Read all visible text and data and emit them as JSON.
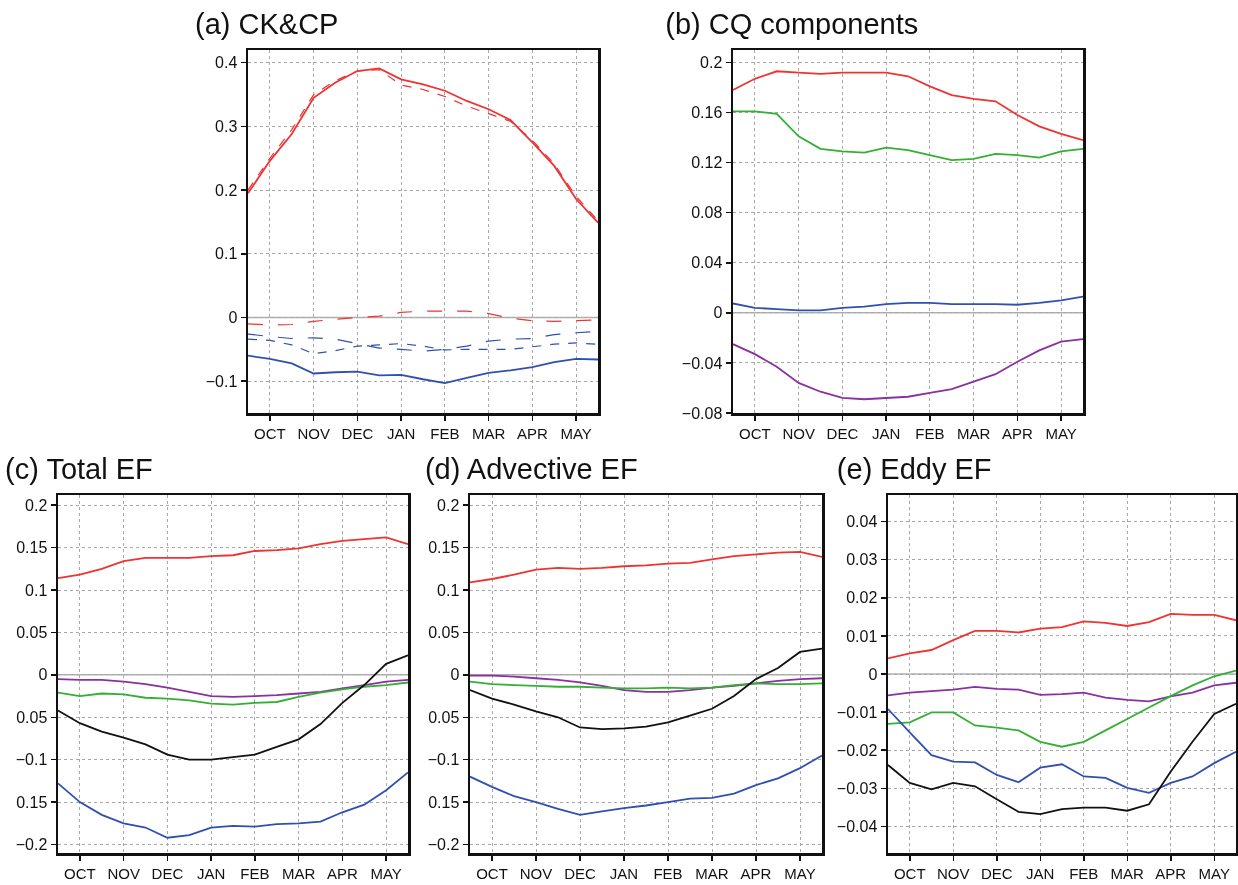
{
  "chart_data": [
    {
      "type": "line",
      "title": "(a) CK&CP",
      "categories": [
        null,
        "OCT",
        null,
        "NOV",
        null,
        "DEC",
        null,
        "JAN",
        null,
        "FEB",
        null,
        "MAR",
        null,
        "APR",
        null,
        "MAY",
        null
      ],
      "ylim": [
        -0.15,
        0.42
      ],
      "yticks": [
        {
          "value": -0.1,
          "label": "−0.1"
        },
        0,
        0.1,
        0.2,
        0.3,
        0.4
      ],
      "grid": true,
      "ref_lines": [
        {
          "axis": "y",
          "value": 0,
          "color": "#b0b0b0"
        }
      ],
      "series": [
        {
          "color": "#ee3333",
          "line_style": "solid",
          "values": [
            0.195,
            0.246,
            0.288,
            0.345,
            0.369,
            0.387,
            0.391,
            0.374,
            0.366,
            0.356,
            0.34,
            0.327,
            0.31,
            0.275,
            0.238,
            0.186,
            0.149
          ]
        },
        {
          "color": "#ee3333",
          "line_style": "dotted",
          "values": [
            0.2,
            0.25,
            0.295,
            0.35,
            0.372,
            0.387,
            0.389,
            0.365,
            0.358,
            0.347,
            0.332,
            0.32,
            0.308,
            0.278,
            0.241,
            0.19,
            0.152
          ]
        },
        {
          "color": "#ee3333",
          "line_style": "dashed",
          "values": [
            -0.01,
            -0.012,
            -0.011,
            -0.006,
            -0.003,
            0.0,
            0.002,
            0.008,
            0.01,
            0.01,
            0.01,
            0.006,
            -0.001,
            -0.005,
            -0.006,
            -0.005,
            -0.004
          ]
        },
        {
          "color": "#3050b0",
          "line_style": "dashed",
          "values": [
            -0.026,
            -0.03,
            -0.033,
            -0.032,
            -0.034,
            -0.041,
            -0.048,
            -0.05,
            -0.053,
            -0.05,
            -0.045,
            -0.037,
            -0.034,
            -0.033,
            -0.027,
            -0.024,
            -0.022
          ]
        },
        {
          "color": "#3050b0",
          "line_style": "dotted",
          "values": [
            -0.034,
            -0.036,
            -0.043,
            -0.057,
            -0.052,
            -0.045,
            -0.043,
            -0.041,
            -0.045,
            -0.051,
            -0.05,
            -0.05,
            -0.05,
            -0.046,
            -0.042,
            -0.04,
            -0.042
          ]
        },
        {
          "color": "#3050b0",
          "line_style": "solid",
          "values": [
            -0.06,
            -0.065,
            -0.072,
            -0.088,
            -0.086,
            -0.085,
            -0.091,
            -0.09,
            -0.097,
            -0.103,
            -0.095,
            -0.087,
            -0.083,
            -0.078,
            -0.07,
            -0.065,
            -0.066
          ]
        }
      ]
    },
    {
      "type": "line",
      "title": "(b) CQ components",
      "categories": [
        null,
        "OCT",
        null,
        "NOV",
        null,
        "DEC",
        null,
        "JAN",
        null,
        "FEB",
        null,
        "MAR",
        null,
        "APR",
        null,
        "MAY",
        null
      ],
      "ylim": [
        -0.08,
        0.21
      ],
      "yticks": [
        {
          "value": -0.08,
          "label": "−0.08"
        },
        {
          "value": -0.04,
          "label": "−0.04"
        },
        0,
        0.04,
        0.08,
        0.12,
        0.16,
        0.2
      ],
      "grid": true,
      "ref_lines": [
        {
          "axis": "y",
          "value": 0,
          "color": "#b0b0b0"
        }
      ],
      "series": [
        {
          "color": "#ee3333",
          "line_style": "solid",
          "values": [
            0.178,
            0.187,
            0.193,
            0.192,
            0.191,
            0.192,
            0.192,
            0.192,
            0.189,
            0.181,
            0.174,
            0.171,
            0.169,
            0.158,
            0.149,
            0.143,
            0.138
          ]
        },
        {
          "color": "#33b033",
          "line_style": "solid",
          "values": [
            0.161,
            0.161,
            0.159,
            0.141,
            0.131,
            0.129,
            0.128,
            0.132,
            0.13,
            0.126,
            0.122,
            0.123,
            0.127,
            0.126,
            0.124,
            0.129,
            0.131
          ]
        },
        {
          "color": "#3050b0",
          "line_style": "solid",
          "values": [
            0.0075,
            0.004,
            0.003,
            0.002,
            0.002,
            0.004,
            0.005,
            0.007,
            0.008,
            0.008,
            0.007,
            0.007,
            0.007,
            0.0065,
            0.008,
            0.01,
            0.013
          ]
        },
        {
          "color": "#8a30a0",
          "line_style": "solid",
          "values": [
            -0.025,
            -0.033,
            -0.043,
            -0.056,
            -0.063,
            -0.068,
            -0.069,
            -0.068,
            -0.067,
            -0.064,
            -0.061,
            -0.055,
            -0.049,
            -0.039,
            -0.03,
            -0.023,
            -0.021
          ]
        }
      ]
    },
    {
      "type": "line",
      "title": "(c) Total EF",
      "categories": [
        null,
        "OCT",
        null,
        "NOV",
        null,
        "DEC",
        null,
        "JAN",
        null,
        "FEB",
        null,
        "MAR",
        null,
        "APR",
        null,
        "MAY",
        null
      ],
      "ylim": [
        -0.21,
        0.212
      ],
      "yticks": [
        {
          "value": -0.2,
          "label": "−0.2"
        },
        {
          "value": -0.15,
          "label": "0.15"
        },
        {
          "value": -0.1,
          "label": "−0.1"
        },
        {
          "value": -0.05,
          "label": "0.05"
        },
        0,
        0.05,
        0.1,
        0.15,
        0.2
      ],
      "grid": true,
      "ref_lines": [
        {
          "axis": "y",
          "value": 0,
          "color": "#b0b0b0"
        }
      ],
      "series": [
        {
          "color": "#ee3333",
          "line_style": "solid",
          "values": [
            0.114,
            0.118,
            0.125,
            0.134,
            0.138,
            0.138,
            0.138,
            0.14,
            0.141,
            0.146,
            0.147,
            0.149,
            0.154,
            0.158,
            0.16,
            0.162,
            0.154
          ]
        },
        {
          "color": "#8a30a0",
          "line_style": "solid",
          "values": [
            -0.005,
            -0.006,
            -0.006,
            -0.008,
            -0.011,
            -0.015,
            -0.02,
            -0.025,
            -0.026,
            -0.025,
            -0.024,
            -0.022,
            -0.02,
            -0.016,
            -0.012,
            -0.008,
            -0.006
          ]
        },
        {
          "color": "#33b033",
          "line_style": "solid",
          "values": [
            -0.021,
            -0.025,
            -0.022,
            -0.023,
            -0.027,
            -0.028,
            -0.03,
            -0.034,
            -0.035,
            -0.033,
            -0.032,
            -0.026,
            -0.021,
            -0.017,
            -0.014,
            -0.012,
            -0.009
          ]
        },
        {
          "color": "#111111",
          "line_style": "solid",
          "values": [
            -0.042,
            -0.057,
            -0.067,
            -0.074,
            -0.082,
            -0.094,
            -0.1,
            -0.1,
            -0.097,
            -0.094,
            -0.085,
            -0.076,
            -0.058,
            -0.033,
            -0.012,
            0.013,
            0.023
          ]
        },
        {
          "color": "#3050b0",
          "line_style": "solid",
          "values": [
            -0.128,
            -0.15,
            -0.165,
            -0.175,
            -0.18,
            -0.192,
            -0.189,
            -0.18,
            -0.178,
            -0.179,
            -0.176,
            -0.175,
            -0.173,
            -0.162,
            -0.153,
            -0.136,
            -0.115
          ]
        }
      ]
    },
    {
      "type": "line",
      "title": "(d) Advective EF",
      "categories": [
        null,
        "OCT",
        null,
        "NOV",
        null,
        "DEC",
        null,
        "JAN",
        null,
        "FEB",
        null,
        "MAR",
        null,
        "APR",
        null,
        "MAY",
        null
      ],
      "ylim": [
        -0.21,
        0.212
      ],
      "yticks": [
        {
          "value": -0.2,
          "label": "−0.2"
        },
        {
          "value": -0.15,
          "label": "0.15"
        },
        {
          "value": -0.1,
          "label": "−0.1"
        },
        {
          "value": -0.05,
          "label": "0.05"
        },
        0,
        0.05,
        0.1,
        0.15,
        0.2
      ],
      "grid": true,
      "ref_lines": [
        {
          "axis": "y",
          "value": 0,
          "color": "#b0b0b0"
        }
      ],
      "series": [
        {
          "color": "#ee3333",
          "line_style": "solid",
          "values": [
            0.109,
            0.113,
            0.118,
            0.124,
            0.126,
            0.125,
            0.126,
            0.128,
            0.129,
            0.131,
            0.132,
            0.136,
            0.14,
            0.142,
            0.144,
            0.145,
            0.139
          ]
        },
        {
          "color": "#8a30a0",
          "line_style": "solid",
          "values": [
            -0.001,
            -0.001,
            -0.002,
            -0.004,
            -0.006,
            -0.009,
            -0.013,
            -0.018,
            -0.02,
            -0.02,
            -0.018,
            -0.015,
            -0.013,
            -0.01,
            -0.007,
            -0.005,
            -0.004
          ]
        },
        {
          "color": "#33b033",
          "line_style": "solid",
          "values": [
            -0.008,
            -0.011,
            -0.012,
            -0.013,
            -0.014,
            -0.014,
            -0.015,
            -0.016,
            -0.016,
            -0.015,
            -0.016,
            -0.015,
            -0.012,
            -0.01,
            -0.011,
            -0.011,
            -0.01
          ]
        },
        {
          "color": "#111111",
          "line_style": "solid",
          "values": [
            -0.018,
            -0.028,
            -0.035,
            -0.043,
            -0.05,
            -0.062,
            -0.064,
            -0.063,
            -0.061,
            -0.056,
            -0.048,
            -0.04,
            -0.025,
            -0.005,
            0.008,
            0.027,
            0.031
          ]
        },
        {
          "color": "#3050b0",
          "line_style": "solid",
          "values": [
            -0.12,
            -0.132,
            -0.143,
            -0.15,
            -0.158,
            -0.165,
            -0.161,
            -0.157,
            -0.154,
            -0.15,
            -0.146,
            -0.145,
            -0.14,
            -0.13,
            -0.122,
            -0.11,
            -0.095
          ]
        }
      ]
    },
    {
      "type": "line",
      "title": "(e) Eddy EF",
      "categories": [
        null,
        "OCT",
        null,
        "NOV",
        null,
        "DEC",
        null,
        "JAN",
        null,
        "FEB",
        null,
        "MAR",
        null,
        "APR",
        null,
        "MAY",
        null
      ],
      "ylim": [
        -0.047,
        0.047
      ],
      "yticks": [
        {
          "value": -0.04,
          "label": "−0.04"
        },
        {
          "value": -0.03,
          "label": "−0.03"
        },
        {
          "value": -0.02,
          "label": "−0.02"
        },
        {
          "value": -0.01,
          "label": "−0.01"
        },
        0,
        0.01,
        0.02,
        0.03,
        0.04
      ],
      "grid": true,
      "ref_lines": [
        {
          "axis": "y",
          "value": 0,
          "color": "#b0b0b0"
        }
      ],
      "series": [
        {
          "color": "#ee3333",
          "line_style": "solid",
          "values": [
            0.0041,
            0.0054,
            0.0063,
            0.0089,
            0.0113,
            0.0113,
            0.0109,
            0.0119,
            0.0123,
            0.0138,
            0.0134,
            0.0126,
            0.0136,
            0.0158,
            0.0155,
            0.0155,
            0.0141
          ]
        },
        {
          "color": "#8a30a0",
          "line_style": "solid",
          "values": [
            -0.0056,
            -0.0049,
            -0.0045,
            -0.0041,
            -0.0034,
            -0.0039,
            -0.0041,
            -0.0055,
            -0.0053,
            -0.0049,
            -0.0062,
            -0.0068,
            -0.0072,
            -0.0059,
            -0.0049,
            -0.003,
            -0.0023
          ]
        },
        {
          "color": "#33b033",
          "line_style": "solid",
          "values": [
            -0.0131,
            -0.0127,
            -0.0101,
            -0.0101,
            -0.0135,
            -0.0141,
            -0.0148,
            -0.0178,
            -0.0191,
            -0.0178,
            -0.0148,
            -0.0118,
            -0.0088,
            -0.0058,
            -0.003,
            -0.0006,
            0.0009
          ]
        },
        {
          "color": "#3050b0",
          "line_style": "solid",
          "values": [
            -0.0092,
            -0.0153,
            -0.0213,
            -0.023,
            -0.0232,
            -0.0265,
            -0.0284,
            -0.0246,
            -0.0237,
            -0.0269,
            -0.0273,
            -0.0299,
            -0.0312,
            -0.0286,
            -0.0269,
            -0.0234,
            -0.0204
          ]
        },
        {
          "color": "#111111",
          "line_style": "solid",
          "values": [
            -0.0239,
            -0.0286,
            -0.0303,
            -0.0286,
            -0.0295,
            -0.0329,
            -0.0362,
            -0.0368,
            -0.0355,
            -0.0351,
            -0.0351,
            -0.0359,
            -0.0342,
            -0.0256,
            -0.0178,
            -0.0105,
            -0.0078
          ]
        }
      ]
    }
  ]
}
